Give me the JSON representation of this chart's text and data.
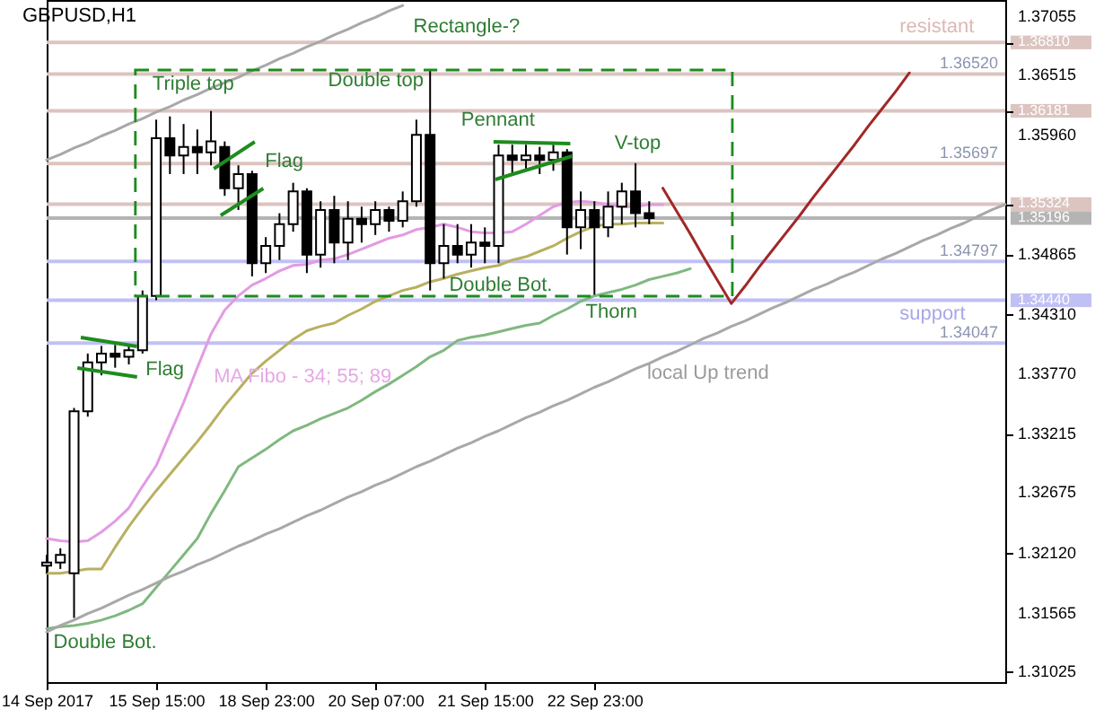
{
  "chart_data": {
    "type": "candlestick",
    "title": "GBPUSD,H1",
    "categories": [
      "14 Sep 2017",
      null,
      null,
      null,
      null,
      null,
      null,
      null,
      "15 Sep 15:00",
      null,
      null,
      null,
      null,
      null,
      null,
      null,
      "18 Sep 23:00",
      null,
      null,
      null,
      null,
      null,
      null,
      null,
      "20 Sep 07:00",
      null,
      null,
      null,
      null,
      null,
      null,
      null,
      "21 Sep 15:00",
      null,
      null,
      null,
      null,
      null,
      null,
      null,
      "22 Sep 23:00",
      null,
      null,
      null,
      null,
      null,
      null,
      null,
      null,
      null,
      null,
      null,
      null,
      null,
      null,
      null,
      null,
      null,
      null,
      null,
      null,
      null,
      null,
      null,
      null,
      null,
      null,
      null,
      null,
      null,
      null
    ],
    "ohlc": [
      [
        1.32,
        1.321,
        1.3193,
        1.3203
      ],
      [
        1.3203,
        1.3216,
        1.3197,
        1.321
      ],
      [
        1.3193,
        1.3345,
        1.3152,
        1.3342
      ],
      [
        1.3342,
        1.3395,
        1.3337,
        1.3387
      ],
      [
        1.3387,
        1.3402,
        1.3375,
        1.3395
      ],
      [
        1.3395,
        1.3403,
        1.3382,
        1.3392
      ],
      [
        1.3392,
        1.3403,
        1.3385,
        1.3398
      ],
      [
        1.3398,
        1.3453,
        1.3395,
        1.3448
      ],
      [
        1.3448,
        1.361,
        1.3444,
        1.3593
      ],
      [
        1.3593,
        1.3613,
        1.356,
        1.3577
      ],
      [
        1.3577,
        1.3606,
        1.356,
        1.3585
      ],
      [
        1.3585,
        1.3601,
        1.356,
        1.358
      ],
      [
        1.358,
        1.3618,
        1.3568,
        1.359
      ],
      [
        1.3585,
        1.359,
        1.354,
        1.3547
      ],
      [
        1.3547,
        1.3568,
        1.3527,
        1.356
      ],
      [
        1.356,
        1.3563,
        1.3466,
        1.3478
      ],
      [
        1.3478,
        1.3502,
        1.3469,
        1.3494
      ],
      [
        1.3494,
        1.3524,
        1.3481,
        1.3514
      ],
      [
        1.3514,
        1.3552,
        1.3507,
        1.3544
      ],
      [
        1.3544,
        1.3547,
        1.3469,
        1.3486
      ],
      [
        1.3486,
        1.3535,
        1.3474,
        1.3527
      ],
      [
        1.3527,
        1.354,
        1.3478,
        1.3497
      ],
      [
        1.3497,
        1.3535,
        1.3481,
        1.3519
      ],
      [
        1.3519,
        1.353,
        1.3497,
        1.3514
      ],
      [
        1.3514,
        1.3535,
        1.3504,
        1.3527
      ],
      [
        1.3527,
        1.353,
        1.3507,
        1.3517
      ],
      [
        1.3517,
        1.3544,
        1.3511,
        1.3535
      ],
      [
        1.3535,
        1.361,
        1.353,
        1.3596
      ],
      [
        1.3596,
        1.3656,
        1.3453,
        1.3478
      ],
      [
        1.3478,
        1.3514,
        1.3464,
        1.3494
      ],
      [
        1.3494,
        1.3514,
        1.3478,
        1.3486
      ],
      [
        1.3486,
        1.3514,
        1.3474,
        1.3497
      ],
      [
        1.3497,
        1.3511,
        1.3478,
        1.3494
      ],
      [
        1.3494,
        1.3587,
        1.3478,
        1.3577
      ],
      [
        1.3577,
        1.3587,
        1.356,
        1.3573
      ],
      [
        1.3573,
        1.3587,
        1.3563,
        1.3577
      ],
      [
        1.3577,
        1.3585,
        1.356,
        1.3573
      ],
      [
        1.3573,
        1.3587,
        1.3563,
        1.358
      ],
      [
        1.358,
        1.3583,
        1.3486,
        1.3511
      ],
      [
        1.3511,
        1.3544,
        1.3491,
        1.3527
      ],
      [
        1.3527,
        1.3535,
        1.3449,
        1.3511
      ],
      [
        1.3511,
        1.3544,
        1.3502,
        1.353
      ],
      [
        1.353,
        1.3552,
        1.3514,
        1.3544
      ],
      [
        1.3544,
        1.357,
        1.3511,
        1.3524
      ],
      [
        1.3524,
        1.3535,
        1.3514,
        1.35196
      ],
      null,
      null,
      null,
      null,
      null,
      null,
      null,
      null,
      null,
      null,
      null,
      null,
      null,
      null,
      null,
      null,
      null,
      null,
      null,
      null,
      null,
      null,
      null,
      null,
      null,
      null
    ],
    "series": [
      {
        "type": "line",
        "color": "#e39be3",
        "values": [
          1.3225,
          1.3223,
          1.3222,
          1.3223,
          1.3231,
          1.3241,
          1.3253,
          1.3273,
          1.3292,
          1.3321,
          1.335,
          1.3382,
          1.3413,
          1.3435,
          1.3448,
          1.3458,
          1.3464,
          1.3471,
          1.3476,
          1.3477,
          1.3481,
          1.3482,
          1.3486,
          1.3491,
          1.3496,
          1.3501,
          1.3504,
          1.3509,
          1.3511,
          1.3514,
          1.3511,
          1.3507,
          1.3506,
          1.3506,
          1.3507,
          1.3514,
          1.3522,
          1.353,
          1.3534,
          1.3535,
          1.3534,
          1.3532,
          1.353,
          1.353,
          1.3532,
          1.3532,
          null,
          null,
          null,
          null,
          null,
          null,
          null,
          null,
          null,
          null,
          null,
          null,
          null,
          null,
          null,
          null,
          null,
          null,
          null,
          null,
          null,
          null,
          null,
          null,
          null
        ]
      },
      {
        "type": "line",
        "color": "#b8b060",
        "values": [
          1.3193,
          1.3193,
          1.3195,
          1.3197,
          1.3197,
          1.3217,
          1.3236,
          1.3253,
          1.3269,
          1.3284,
          1.3299,
          1.3314,
          1.333,
          1.3347,
          1.3362,
          1.3377,
          1.3388,
          1.3398,
          1.3408,
          1.3416,
          1.342,
          1.3423,
          1.343,
          1.3436,
          1.3443,
          1.3448,
          1.3453,
          1.3456,
          1.3461,
          1.3464,
          1.3468,
          1.3471,
          1.3474,
          1.3476,
          1.3481,
          1.3484,
          1.3489,
          1.3494,
          1.3501,
          1.3507,
          1.3512,
          1.3514,
          1.3514,
          1.3515,
          1.3515,
          1.3515,
          null,
          null,
          null,
          null,
          null,
          null,
          null,
          null,
          null,
          null,
          null,
          null,
          null,
          null,
          null,
          null,
          null,
          null,
          null,
          null,
          null,
          null,
          null,
          null,
          null
        ]
      },
      {
        "type": "line",
        "color": "#80b880",
        "values": [
          1.3142,
          1.3144,
          1.3145,
          1.3147,
          1.315,
          1.3154,
          1.3159,
          1.3165,
          1.318,
          1.3195,
          1.321,
          1.3225,
          1.3248,
          1.3269,
          1.3291,
          1.3299,
          1.3307,
          1.3316,
          1.3324,
          1.3329,
          1.3335,
          1.334,
          1.3345,
          1.3352,
          1.336,
          1.3367,
          1.3375,
          1.3383,
          1.3392,
          1.3398,
          1.3407,
          1.341,
          1.3412,
          1.3415,
          1.3418,
          1.3421,
          1.3423,
          1.343,
          1.3436,
          1.3443,
          1.3448,
          1.3451,
          1.3454,
          1.3458,
          1.3463,
          1.3466,
          1.3469,
          1.3473,
          null,
          null,
          null,
          null,
          null,
          null,
          null,
          null,
          null,
          null,
          null,
          null,
          null,
          null,
          null,
          null,
          null,
          null,
          null,
          null,
          null,
          null,
          null
        ]
      },
      {
        "type": "line",
        "color": "#a8a8a8",
        "values": [
          1.3139,
          1.3145,
          1.315,
          1.3156,
          1.3161,
          1.3167,
          1.3173,
          1.3178,
          1.3184,
          1.319,
          1.3195,
          1.3201,
          1.3206,
          1.3212,
          1.3218,
          1.3223,
          1.3229,
          1.3234,
          1.324,
          1.3246,
          1.3251,
          1.3257,
          1.3263,
          1.3268,
          1.3274,
          1.3279,
          1.3285,
          1.3291,
          1.3296,
          1.3302,
          1.3308,
          1.3313,
          1.3319,
          1.3324,
          1.333,
          1.3336,
          1.3341,
          1.3347,
          1.3352,
          1.3358,
          1.3364,
          1.3369,
          1.3375,
          1.3381,
          1.3386,
          1.3392,
          1.3397,
          1.3403,
          1.3409,
          1.3414,
          1.342,
          1.3425,
          1.3431,
          1.3437,
          1.3442,
          1.3448,
          1.3454,
          1.3459,
          1.3465,
          1.347,
          1.3476,
          1.3482,
          1.3487,
          1.3493,
          1.3499,
          1.3504,
          1.351,
          1.3515,
          1.3521,
          1.3527,
          1.3532
        ]
      },
      {
        "type": "line",
        "color": "#a8a8a8",
        "values": [
          1.3573,
          1.3578,
          1.3584,
          1.3589,
          1.3595,
          1.36,
          1.3606,
          1.3611,
          1.3617,
          1.3622,
          1.3628,
          1.3633,
          1.3639,
          1.3644,
          1.3649,
          1.3655,
          1.366,
          1.3666,
          1.3671,
          1.3677,
          1.3682,
          1.3688,
          1.3693,
          1.3699,
          1.3704,
          1.371,
          1.3715,
          null,
          null,
          null,
          null,
          null,
          null,
          null,
          null,
          null,
          null,
          null,
          null,
          null,
          null,
          null,
          null,
          null,
          null,
          null,
          null,
          null,
          null,
          null,
          null,
          null,
          null,
          null,
          null,
          null,
          null,
          null,
          null,
          null,
          null,
          null,
          null,
          null,
          null,
          null,
          null,
          null,
          null,
          null,
          null
        ]
      },
      {
        "type": "line",
        "color": "#a02828",
        "values": [
          null,
          null,
          null,
          null,
          null,
          null,
          null,
          null,
          null,
          null,
          null,
          null,
          null,
          null,
          null,
          null,
          null,
          null,
          null,
          null,
          null,
          null,
          null,
          null,
          null,
          null,
          null,
          null,
          null,
          null,
          null,
          null,
          null,
          null,
          null,
          null,
          null,
          null,
          null,
          null,
          null,
          null,
          null,
          null,
          null,
          1.3547,
          1.3526,
          1.3505,
          1.3483,
          1.3462,
          1.3441,
          1.3457,
          1.3474,
          1.349,
          1.3506,
          1.3522,
          1.3539,
          1.3555,
          1.3571,
          1.3587,
          1.3604,
          1.362,
          1.3636,
          1.3653,
          null,
          null,
          null,
          null,
          null,
          null,
          null
        ]
      }
    ],
    "ref_lines": [
      {
        "axis": "y",
        "value": 1.3681,
        "color": "#dcc4c0"
      },
      {
        "axis": "y",
        "value": 1.3652,
        "label": "1.36520",
        "color": "#dcc4c0"
      },
      {
        "axis": "y",
        "value": 1.36181,
        "color": "#dcc4c0"
      },
      {
        "axis": "y",
        "value": 1.35697,
        "label": "1.35697",
        "color": "#dcc4c0"
      },
      {
        "axis": "y",
        "value": 1.35324,
        "color": "#dcc4c0"
      },
      {
        "axis": "y",
        "value": 1.35196,
        "color": "#b4b4b4"
      },
      {
        "axis": "y",
        "value": 1.34797,
        "label": "1.34797",
        "color": "#c0c0f4"
      },
      {
        "axis": "y",
        "value": 1.3444,
        "color": "#c0c0f4"
      },
      {
        "axis": "y",
        "value": 1.34047,
        "label": "1.34047",
        "color": "#c0c0f4"
      }
    ],
    "annotations": [
      "Rectangle-?",
      "Triple top",
      "Double top",
      {
        "text": "Flag",
        "y": 1.3578
      },
      "Flag",
      {
        "text": "Pennant",
        "y": 1.359
      },
      "V-top",
      "Double Bot.",
      "Thorn",
      "Double Bot.",
      "MA Fibo - 34; 55; 89",
      "local Up trend",
      "resistant",
      "support"
    ],
    "ylim": [
      1.3093,
      1.372
    ],
    "yticks": [
      1.37055,
      {
        "value": 1.3681,
        "label": "1.36810"
      },
      1.36515,
      {
        "value": 1.36181,
        "label": "1.36181"
      },
      {
        "value": 1.3596,
        "label": "1.35960"
      },
      1.35324,
      1.35196,
      1.34865,
      {
        "value": 1.3444,
        "label": "1.34440"
      },
      {
        "value": 1.3431,
        "label": "1.34310"
      },
      {
        "value": 1.3377,
        "label": "1.33770"
      },
      1.33215,
      1.32675,
      {
        "value": 1.3212,
        "label": "1.32120"
      },
      1.31565,
      1.31025
    ]
  }
}
